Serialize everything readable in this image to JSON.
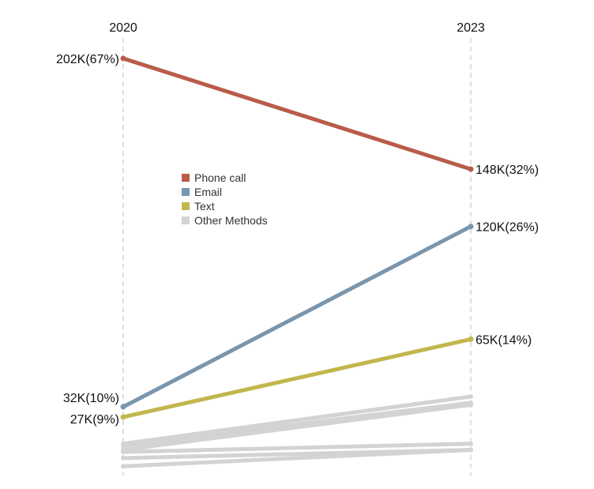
{
  "chart_data": {
    "type": "line",
    "x": [
      "2020",
      "2023"
    ],
    "legend_placement": "center-left",
    "grid": false,
    "series": [
      {
        "name": "Phone call",
        "color": "#b85c4a",
        "values": [
          202,
          148
        ],
        "labels": [
          "202K(67%)",
          "148K(32%)"
        ]
      },
      {
        "name": "Email",
        "color": "#7a96ad",
        "values": [
          32,
          120
        ],
        "labels": [
          "32K(10%)",
          "120K(26%)"
        ]
      },
      {
        "name": "Text",
        "color": "#c2b64e",
        "values": [
          27,
          65
        ],
        "labels": [
          "27K(9%)",
          "65K(14%)"
        ]
      },
      {
        "name": "Other Methods",
        "color": "#d3d3d3",
        "values": [
          14,
          37
        ],
        "labels": [
          "",
          ""
        ]
      },
      {
        "name": "",
        "color": "#d3d3d3",
        "values": [
          13,
          34
        ]
      },
      {
        "name": "",
        "color": "#d3d3d3",
        "values": [
          11,
          33
        ]
      },
      {
        "name": "",
        "color": "#d3d3d3",
        "values": [
          10,
          14
        ]
      },
      {
        "name": "",
        "color": "#d3d3d3",
        "values": [
          7,
          11
        ]
      },
      {
        "name": "",
        "color": "#d3d3d3",
        "values": [
          3,
          11
        ]
      }
    ],
    "ylim": [
      0,
      210
    ]
  }
}
